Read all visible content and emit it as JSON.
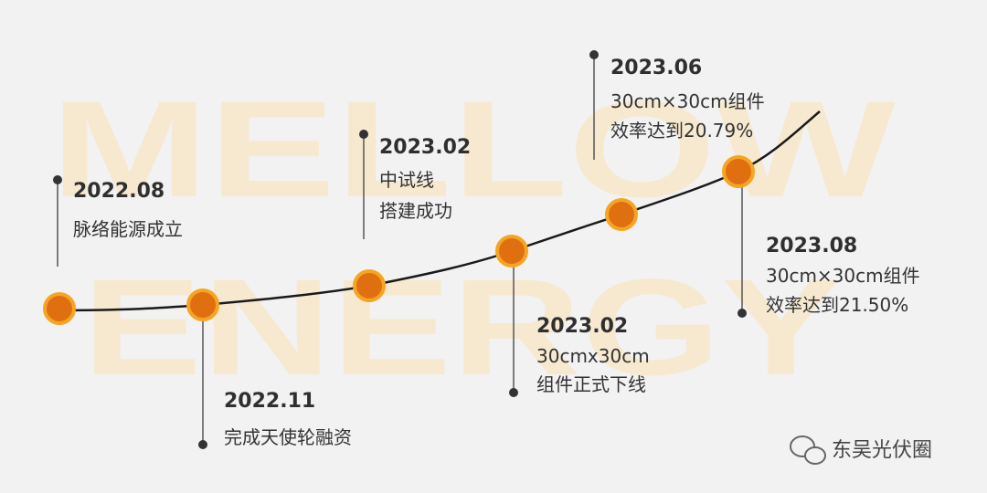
{
  "watermark": [
    "MELLOW",
    "ENERGY"
  ],
  "events": [
    {
      "date": "2022.08",
      "lines": [
        "脉络能源成立"
      ]
    },
    {
      "date": "2022.11",
      "lines": [
        "完成天使轮融资"
      ]
    },
    {
      "date": "2023.02",
      "lines": [
        "中试线",
        "搭建成功"
      ]
    },
    {
      "date": "2023.02",
      "lines": [
        "30cmx30cm",
        "组件正式下线"
      ]
    },
    {
      "date": "2023.06",
      "lines": [
        "30cm×30cm组件",
        "效率达到20.79%"
      ]
    },
    {
      "date": "2023.08",
      "lines": [
        "30cm×30cm组件",
        "效率达到21.50%"
      ]
    }
  ],
  "footer": {
    "source": "东吴光伏圈"
  }
}
